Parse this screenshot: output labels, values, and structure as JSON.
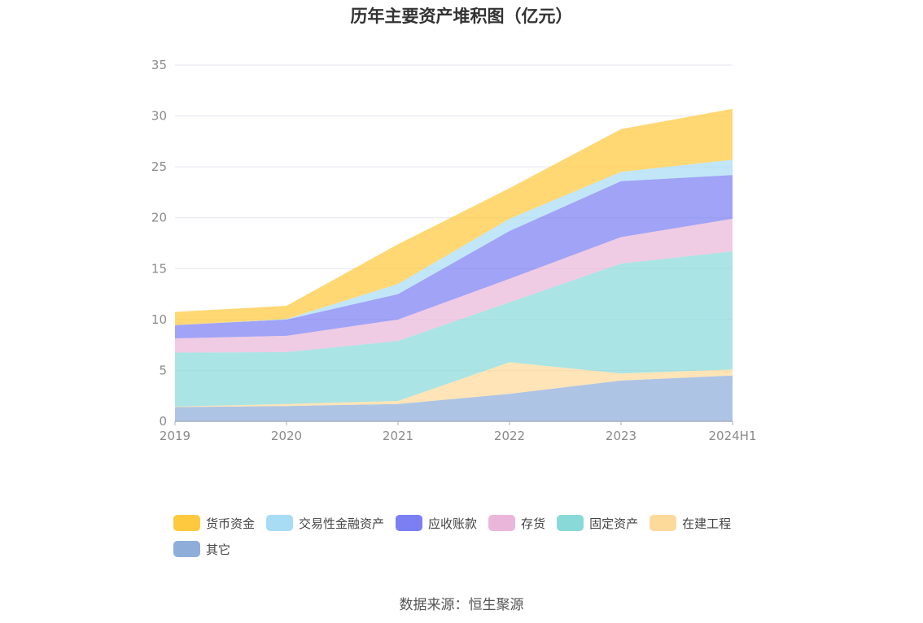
{
  "title": "历年主要资产堆积图（亿元）",
  "source": "数据来源：恒生聚源",
  "chart_data": {
    "type": "area",
    "stacked": true,
    "categories": [
      "2019",
      "2020",
      "2021",
      "2022",
      "2023",
      "2024H1"
    ],
    "ylim": [
      0,
      35
    ],
    "yticks": [
      0,
      5,
      10,
      15,
      20,
      25,
      30,
      35
    ],
    "grid": true,
    "legend_position": "bottom",
    "series": [
      {
        "name": "其它",
        "color": "#8fadd9",
        "values": [
          1.4,
          1.5,
          1.7,
          2.7,
          4.0,
          4.5
        ]
      },
      {
        "name": "在建工程",
        "color": "#fdd99a",
        "values": [
          0.05,
          0.2,
          0.3,
          3.1,
          0.7,
          0.6
        ]
      },
      {
        "name": "固定资产",
        "color": "#8ad9d9",
        "values": [
          5.3,
          5.1,
          5.9,
          5.9,
          10.8,
          11.6
        ]
      },
      {
        "name": "存货",
        "color": "#eab7da",
        "values": [
          1.4,
          1.6,
          2.1,
          2.3,
          2.6,
          3.2
        ]
      },
      {
        "name": "应收账款",
        "color": "#7b7ff2",
        "values": [
          1.3,
          1.6,
          2.5,
          4.7,
          5.5,
          4.3
        ]
      },
      {
        "name": "交易性金融资产",
        "color": "#a8dcf5",
        "values": [
          0.0,
          0.05,
          1.0,
          1.2,
          0.9,
          1.5
        ]
      },
      {
        "name": "货币资金",
        "color": "#ffc93f",
        "values": [
          1.3,
          1.3,
          3.9,
          3.0,
          4.2,
          5.0
        ]
      }
    ],
    "legend_order": [
      "货币资金",
      "交易性金融资产",
      "应收账款",
      "存货",
      "固定资产",
      "在建工程",
      "其它"
    ]
  }
}
